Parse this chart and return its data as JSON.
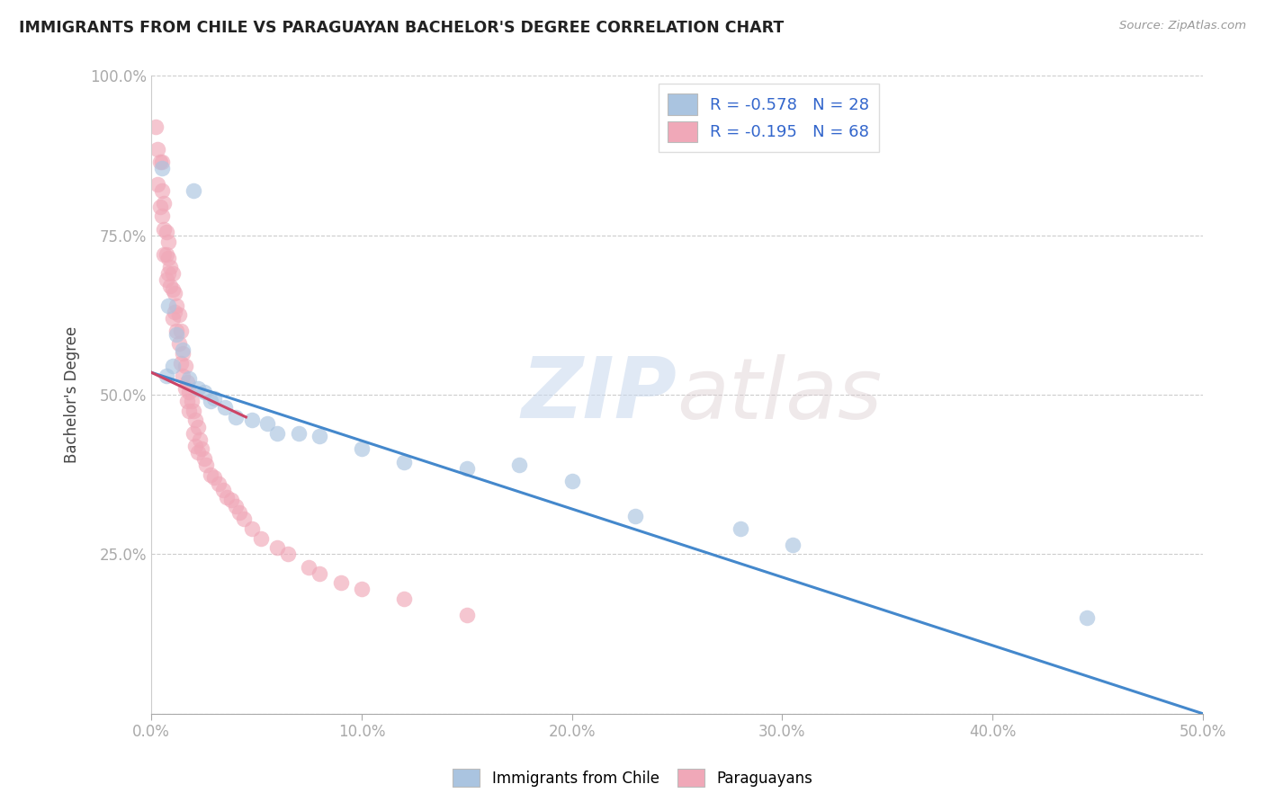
{
  "title": "IMMIGRANTS FROM CHILE VS PARAGUAYAN BACHELOR'S DEGREE CORRELATION CHART",
  "source": "Source: ZipAtlas.com",
  "ylabel": "Bachelor's Degree",
  "xlim": [
    0.0,
    0.5
  ],
  "ylim": [
    0.0,
    1.0
  ],
  "xtick_labels": [
    "0.0%",
    "10.0%",
    "20.0%",
    "30.0%",
    "40.0%",
    "50.0%"
  ],
  "xtick_vals": [
    0.0,
    0.1,
    0.2,
    0.3,
    0.4,
    0.5
  ],
  "ytick_labels": [
    "",
    "25.0%",
    "50.0%",
    "75.0%",
    "100.0%"
  ],
  "ytick_vals": [
    0.0,
    0.25,
    0.5,
    0.75,
    1.0
  ],
  "legend1_label": "Immigrants from Chile",
  "legend2_label": "Paraguayans",
  "r1": -0.578,
  "n1": 28,
  "r2": -0.195,
  "n2": 68,
  "blue_color": "#aac4e0",
  "pink_color": "#f0a8b8",
  "line_blue": "#4488cc",
  "line_pink": "#cc4466",
  "watermark_zip": "ZIP",
  "watermark_atlas": "atlas",
  "blue_scatter_x": [
    0.005,
    0.02,
    0.008,
    0.012,
    0.015,
    0.01,
    0.007,
    0.018,
    0.022,
    0.025,
    0.03,
    0.028,
    0.035,
    0.04,
    0.048,
    0.055,
    0.06,
    0.07,
    0.08,
    0.1,
    0.12,
    0.15,
    0.175,
    0.2,
    0.23,
    0.28,
    0.305,
    0.445
  ],
  "blue_scatter_y": [
    0.855,
    0.82,
    0.64,
    0.595,
    0.57,
    0.545,
    0.53,
    0.525,
    0.51,
    0.505,
    0.495,
    0.49,
    0.48,
    0.465,
    0.46,
    0.455,
    0.44,
    0.44,
    0.435,
    0.415,
    0.395,
    0.385,
    0.39,
    0.365,
    0.31,
    0.29,
    0.265,
    0.15
  ],
  "pink_scatter_x": [
    0.002,
    0.003,
    0.003,
    0.004,
    0.004,
    0.005,
    0.005,
    0.005,
    0.006,
    0.006,
    0.006,
    0.007,
    0.007,
    0.007,
    0.008,
    0.008,
    0.008,
    0.009,
    0.009,
    0.01,
    0.01,
    0.01,
    0.011,
    0.011,
    0.012,
    0.012,
    0.013,
    0.013,
    0.014,
    0.014,
    0.015,
    0.015,
    0.016,
    0.016,
    0.017,
    0.017,
    0.018,
    0.018,
    0.019,
    0.02,
    0.02,
    0.021,
    0.021,
    0.022,
    0.022,
    0.023,
    0.024,
    0.025,
    0.026,
    0.028,
    0.03,
    0.032,
    0.034,
    0.036,
    0.038,
    0.04,
    0.042,
    0.044,
    0.048,
    0.052,
    0.06,
    0.065,
    0.075,
    0.08,
    0.09,
    0.1,
    0.12,
    0.15
  ],
  "pink_scatter_y": [
    0.92,
    0.885,
    0.83,
    0.865,
    0.795,
    0.865,
    0.82,
    0.78,
    0.8,
    0.76,
    0.72,
    0.755,
    0.72,
    0.68,
    0.74,
    0.715,
    0.69,
    0.7,
    0.67,
    0.69,
    0.665,
    0.62,
    0.66,
    0.63,
    0.64,
    0.6,
    0.625,
    0.58,
    0.6,
    0.55,
    0.565,
    0.53,
    0.545,
    0.51,
    0.52,
    0.49,
    0.505,
    0.475,
    0.49,
    0.475,
    0.44,
    0.46,
    0.42,
    0.45,
    0.41,
    0.43,
    0.415,
    0.4,
    0.39,
    0.375,
    0.37,
    0.36,
    0.35,
    0.34,
    0.335,
    0.325,
    0.315,
    0.305,
    0.29,
    0.275,
    0.26,
    0.25,
    0.23,
    0.22,
    0.205,
    0.195,
    0.18,
    0.155
  ],
  "blue_line_x": [
    0.0,
    0.5
  ],
  "blue_line_y": [
    0.535,
    0.0
  ],
  "pink_line_x": [
    0.0,
    0.045
  ],
  "pink_line_y": [
    0.535,
    0.465
  ],
  "dash_line_x": [
    0.0,
    0.5
  ],
  "dash_line_y": [
    0.535,
    0.0
  ]
}
